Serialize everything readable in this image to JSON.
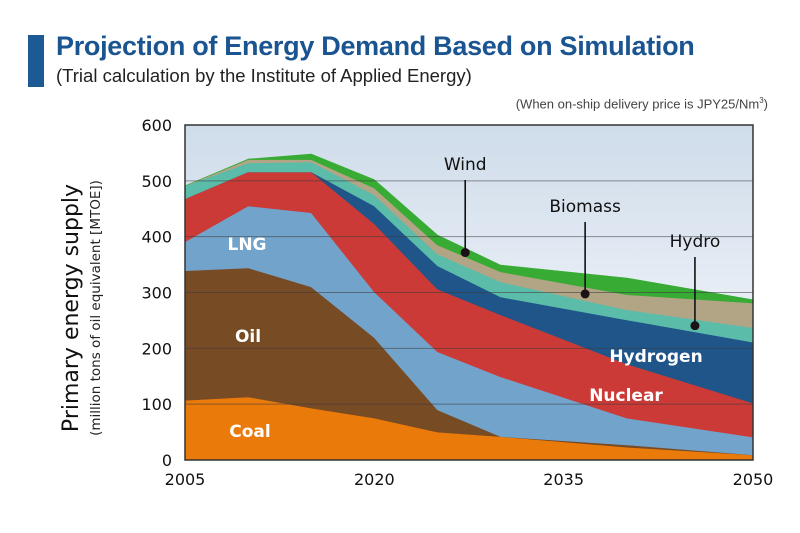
{
  "header": {
    "title": "Projection of Energy Demand Based on Simulation",
    "subtitle": "(Trial calculation by the Institute of Applied Energy)",
    "note_prefix": "(When on-ship delivery price is JPY25/Nm",
    "note_sup": "3",
    "note_suffix": ")",
    "accent_color": "#1c5a96"
  },
  "chart_data": {
    "type": "area",
    "stacked": true,
    "title": "Projection of Energy Demand Based on Simulation",
    "subtitle": "(Trial calculation by the Institute of Applied Energy)",
    "annotation": "(When on-ship delivery price is JPY25/Nm3)",
    "xlabel": "",
    "ylabel": "Primary energy supply",
    "ylabel_sub": "(million tons of oil equivalent [MTOE])",
    "x": [
      2005,
      2010,
      2015,
      2020,
      2025,
      2030,
      2040,
      2050
    ],
    "xlim": [
      2005,
      2050
    ],
    "xticks": [
      2005,
      2020,
      2035,
      2050
    ],
    "xtick_labels": [
      "2005",
      "2020",
      "2035",
      "2050"
    ],
    "ylim": [
      0,
      600
    ],
    "yticks": [
      0,
      100,
      200,
      300,
      400,
      500,
      600
    ],
    "ytick_labels": [
      "0",
      "100",
      "200",
      "300",
      "400",
      "500",
      "600"
    ],
    "grid": true,
    "background_color": "#dfe7f1",
    "series": [
      {
        "name": "Coal",
        "color": "#ea7a0a",
        "values": [
          107,
          113,
          93,
          75,
          50,
          42,
          23,
          9
        ]
      },
      {
        "name": "Oil",
        "color": "#774b24",
        "values": [
          232,
          231,
          217,
          144,
          40,
          0,
          4,
          0
        ]
      },
      {
        "name": "LNG",
        "color": "#72a3cb",
        "values": [
          52,
          111,
          133,
          82,
          104,
          107,
          48,
          32
        ]
      },
      {
        "name": "Nuclear",
        "color": "#cc3a37",
        "values": [
          77,
          61,
          73,
          122,
          112,
          111,
          97,
          61
        ]
      },
      {
        "name": "Hydrogen",
        "color": "#1f5589",
        "values": [
          0,
          0,
          0,
          32,
          42,
          32,
          79,
          109
        ]
      },
      {
        "name": "Hydro",
        "color": "#5bbcaa",
        "values": [
          23,
          16,
          18,
          20,
          21,
          27,
          18,
          26
        ]
      },
      {
        "name": "Biomass",
        "color": "#b2a585",
        "values": [
          0,
          6,
          4,
          12,
          16,
          18,
          27,
          44
        ]
      },
      {
        "name": "Wind",
        "color": "#38ab34",
        "values": [
          0,
          1,
          10,
          15,
          18,
          12,
          30,
          6
        ]
      }
    ],
    "labels": {
      "inside": [
        {
          "series": "Coal",
          "text": "Coal"
        },
        {
          "series": "Oil",
          "text": "Oil"
        },
        {
          "series": "LNG",
          "text": "LNG"
        },
        {
          "series": "Hydrogen",
          "text": "Hydrogen"
        },
        {
          "series": "Nuclear",
          "text": "Nuclear"
        }
      ],
      "callouts": [
        {
          "series": "Wind",
          "text": "Wind"
        },
        {
          "series": "Biomass",
          "text": "Biomass"
        },
        {
          "series": "Hydro",
          "text": "Hydro"
        }
      ]
    }
  }
}
